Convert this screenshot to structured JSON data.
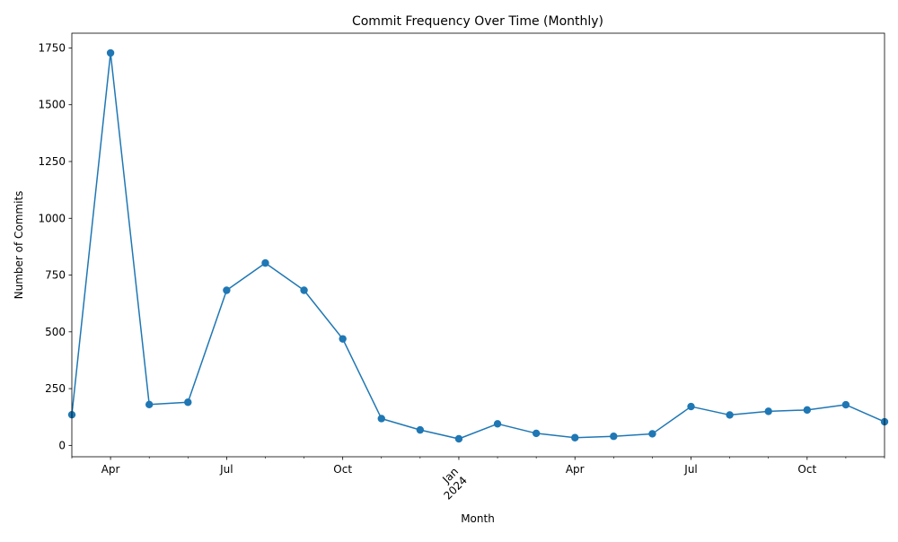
{
  "chart_data": {
    "type": "line",
    "title": "Commit Frequency Over Time (Monthly)",
    "xlabel": "Month",
    "ylabel": "Number of Commits",
    "ylim": [
      -50,
      1815
    ],
    "yticks": [
      0,
      250,
      500,
      750,
      1000,
      1250,
      1500,
      1750
    ],
    "x": [
      "2023-03",
      "2023-04",
      "2023-05",
      "2023-06",
      "2023-07",
      "2023-08",
      "2023-09",
      "2023-10",
      "2023-11",
      "2023-12",
      "2024-01",
      "2024-02",
      "2024-03",
      "2024-04",
      "2024-05",
      "2024-06",
      "2024-07",
      "2024-08",
      "2024-09",
      "2024-10",
      "2024-11",
      "2024-12"
    ],
    "xtick_labels": [
      {
        "month": "2023-04",
        "label": "Apr"
      },
      {
        "month": "2023-07",
        "label": "Jul"
      },
      {
        "month": "2023-10",
        "label": "Oct"
      },
      {
        "month": "2024-01",
        "label": "Jan\n2024"
      },
      {
        "month": "2024-04",
        "label": "Apr"
      },
      {
        "month": "2024-07",
        "label": "Jul"
      },
      {
        "month": "2024-10",
        "label": "Oct"
      }
    ],
    "series": [
      {
        "color": "#1f77b4",
        "values": [
          135,
          1728,
          180,
          190,
          683,
          803,
          683,
          469,
          118,
          68,
          29,
          95,
          53,
          34,
          40,
          51,
          171,
          134,
          150,
          156,
          179,
          104
        ]
      }
    ],
    "grid": false,
    "legend": "none"
  }
}
